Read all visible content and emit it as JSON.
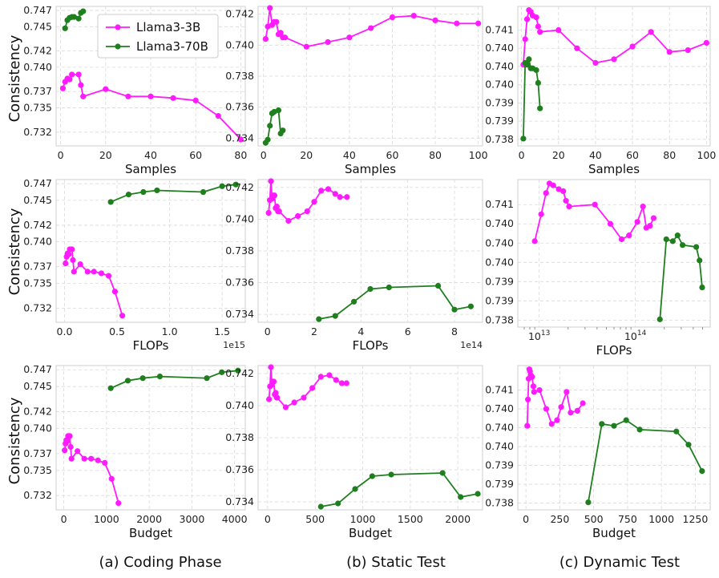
{
  "figure": {
    "ylabel": "Consistency",
    "captions": [
      "(a) Coding Phase",
      "(b) Static Test",
      "(c) Dynamic Test"
    ],
    "legend": [
      "Llama3-3B",
      "Llama3-70B"
    ]
  },
  "colors": {
    "series_3b": "#ff1aff",
    "series_70b": "#1f7f1f"
  },
  "chart_data": [
    {
      "id": "a-samples",
      "type": "line",
      "xlabel": "Samples",
      "xscale": "linear",
      "xlim": [
        -2,
        82
      ],
      "xticks": [
        0,
        20,
        40,
        60,
        80
      ],
      "xticklabels": [
        "0",
        "20",
        "40",
        "60",
        "80"
      ],
      "ylim": [
        0.7303,
        0.7475
      ],
      "yticks": [
        0.732,
        0.735,
        0.737,
        0.74,
        0.742,
        0.745,
        0.747
      ],
      "yticklabels": [
        "0.732",
        "0.735",
        "0.737",
        "0.740",
        "0.742",
        "0.745",
        "0.747"
      ],
      "legend": true,
      "series": [
        {
          "name": "Llama3-3B",
          "x": [
            1,
            2,
            3,
            4,
            5,
            8,
            9,
            10,
            20,
            30,
            40,
            50,
            60,
            70,
            80
          ],
          "y": [
            0.7374,
            0.7382,
            0.7386,
            0.7385,
            0.7391,
            0.7391,
            0.7378,
            0.7364,
            0.7373,
            0.7364,
            0.7364,
            0.7362,
            0.7359,
            0.734,
            0.7311
          ]
        },
        {
          "name": "Llama3-70B",
          "x": [
            2,
            3,
            4,
            5,
            6,
            8,
            9,
            10
          ],
          "y": [
            0.7448,
            0.7458,
            0.7461,
            0.7462,
            0.7462,
            0.746,
            0.7467,
            0.7469
          ]
        }
      ]
    },
    {
      "id": "b-samples",
      "type": "line",
      "xlabel": "Samples",
      "xscale": "linear",
      "xlim": [
        -2.5,
        102
      ],
      "xticks": [
        0,
        20,
        40,
        60,
        80,
        100
      ],
      "xticklabels": [
        "0",
        "20",
        "40",
        "60",
        "80",
        "100"
      ],
      "ylim": [
        0.7335,
        0.7425
      ],
      "yticks": [
        0.734,
        0.736,
        0.738,
        0.74,
        0.742
      ],
      "yticklabels": [
        "0.734",
        "0.736",
        "0.738",
        "0.740",
        "0.742"
      ],
      "legend": false,
      "series": [
        {
          "name": "Llama3-3B",
          "x": [
            1,
            2,
            3,
            4,
            5,
            6,
            7,
            8,
            9,
            10,
            20,
            30,
            40,
            50,
            60,
            70,
            80,
            90,
            100
          ],
          "y": [
            0.7404,
            0.7412,
            0.7424,
            0.7413,
            0.7415,
            0.7415,
            0.7407,
            0.7408,
            0.7405,
            0.7405,
            0.7399,
            0.7402,
            0.7405,
            0.7411,
            0.7418,
            0.7419,
            0.7416,
            0.7414,
            0.7414
          ]
        },
        {
          "name": "Llama3-70B",
          "x": [
            1,
            2,
            3,
            4,
            5,
            7,
            8,
            9
          ],
          "y": [
            0.7337,
            0.7339,
            0.7348,
            0.7356,
            0.7357,
            0.7358,
            0.7343,
            0.7345
          ]
        }
      ]
    },
    {
      "id": "c-samples",
      "type": "line",
      "xlabel": "Samples",
      "xscale": "linear",
      "xlim": [
        -2,
        102
      ],
      "xticks": [
        0,
        20,
        40,
        60,
        80,
        100
      ],
      "xticklabels": [
        "0",
        "20",
        "40",
        "60",
        "80",
        "100"
      ],
      "ylim": [
        0.73782,
        0.74165
      ],
      "yticks": [
        0.738,
        0.7385,
        0.739,
        0.7395,
        0.74,
        0.7405,
        0.741
      ],
      "yticklabels": [
        "0.738",
        "0.739",
        "0.739",
        "0.740",
        "0.740",
        "0.740",
        "0.741"
      ],
      "legend": false,
      "series": [
        {
          "name": "Llama3-3B",
          "x": [
            1,
            2,
            3,
            4,
            5,
            6,
            8,
            9,
            10,
            20,
            30,
            40,
            50,
            60,
            70,
            80,
            90,
            100
          ],
          "y": [
            0.74005,
            0.74075,
            0.7413,
            0.74155,
            0.7415,
            0.7414,
            0.74135,
            0.7411,
            0.74095,
            0.741,
            0.7405,
            0.7401,
            0.7402,
            0.74055,
            0.74095,
            0.7404,
            0.74045,
            0.74065
          ]
        },
        {
          "name": "Llama3-70B",
          "x": [
            1,
            2,
            3,
            4,
            5,
            6,
            8,
            9,
            10
          ],
          "y": [
            0.73802,
            0.7401,
            0.74005,
            0.7402,
            0.73995,
            0.73995,
            0.7399,
            0.73955,
            0.73885
          ]
        }
      ]
    },
    {
      "id": "a-flops",
      "type": "line",
      "xlabel": "FLOPs",
      "xscale": "linear",
      "xoffset": "1e15",
      "xlim": [
        -0.08,
        1.72
      ],
      "xticks": [
        0,
        0.5,
        1,
        1.5
      ],
      "xticklabels": [
        "0.0",
        "0.5",
        "1.0",
        "1.5"
      ],
      "ylim": [
        0.7303,
        0.7475
      ],
      "yticks": [
        0.732,
        0.735,
        0.737,
        0.74,
        0.742,
        0.745,
        0.747
      ],
      "yticklabels": [
        "0.732",
        "0.735",
        "0.737",
        "0.740",
        "0.742",
        "0.745",
        "0.747"
      ],
      "legend": false,
      "series": [
        {
          "name": "Llama3-3B",
          "x": [
            0.01,
            0.02,
            0.03,
            0.04,
            0.05,
            0.07,
            0.08,
            0.09,
            0.15,
            0.22,
            0.28,
            0.35,
            0.42,
            0.48,
            0.55
          ],
          "y": [
            0.7374,
            0.7382,
            0.7386,
            0.7385,
            0.7391,
            0.7391,
            0.7378,
            0.7364,
            0.7373,
            0.7364,
            0.7364,
            0.7362,
            0.7359,
            0.734,
            0.7311
          ]
        },
        {
          "name": "Llama3-70B",
          "x": [
            0.44,
            0.61,
            0.75,
            0.88,
            1.32,
            1.5,
            1.63
          ],
          "y": [
            0.7448,
            0.7457,
            0.746,
            0.7462,
            0.746,
            0.7467,
            0.7469
          ]
        }
      ]
    },
    {
      "id": "b-flops",
      "type": "line",
      "xlabel": "FLOPs",
      "xscale": "linear",
      "xoffset": "1e14",
      "xlim": [
        -0.4,
        9.2
      ],
      "xticks": [
        0,
        2,
        4,
        6,
        8
      ],
      "xticklabels": [
        "0",
        "2",
        "4",
        "6",
        "8"
      ],
      "ylim": [
        0.7335,
        0.7425
      ],
      "yticks": [
        0.734,
        0.736,
        0.738,
        0.74,
        0.742
      ],
      "yticklabels": [
        "0.734",
        "0.736",
        "0.738",
        "0.740",
        "0.742"
      ],
      "legend": false,
      "series": [
        {
          "name": "Llama3-3B",
          "x": [
            0.05,
            0.1,
            0.15,
            0.2,
            0.25,
            0.3,
            0.35,
            0.4,
            0.45,
            0.5,
            0.9,
            1.3,
            1.7,
            2.0,
            2.3,
            2.6,
            2.9,
            3.1,
            3.4
          ],
          "y": [
            0.7404,
            0.7412,
            0.7424,
            0.7413,
            0.7415,
            0.7415,
            0.7407,
            0.7408,
            0.7405,
            0.7405,
            0.7399,
            0.7402,
            0.7405,
            0.7411,
            0.7418,
            0.7419,
            0.7416,
            0.7414,
            0.7414
          ]
        },
        {
          "name": "Llama3-70B",
          "x": [
            2.2,
            2.9,
            3.7,
            4.4,
            5.2,
            7.3,
            8.0,
            8.7
          ],
          "y": [
            0.7337,
            0.7339,
            0.7348,
            0.7356,
            0.7357,
            0.7358,
            0.7343,
            0.7345
          ]
        }
      ]
    },
    {
      "id": "c-flops",
      "type": "line",
      "xlabel": "FLOPs",
      "xscale": "log",
      "xlim": [
        6000000000000.0,
        600000000000000.0
      ],
      "xticks": [
        10000000000000.0,
        100000000000000.0
      ],
      "xticklabels": [
        "10",
        "10"
      ],
      "xtickexp": [
        "13",
        "14"
      ],
      "ylim": [
        0.73782,
        0.74165
      ],
      "yticks": [
        0.738,
        0.7385,
        0.739,
        0.7395,
        0.74,
        0.7405,
        0.741
      ],
      "yticklabels": [
        "0.738",
        "0.739",
        "0.739",
        "0.740",
        "0.740",
        "0.740",
        "0.741"
      ],
      "legend": false,
      "series": [
        {
          "name": "Llama3-3B",
          "x": [
            9000000000000.0,
            10500000000000.0,
            11800000000000.0,
            12800000000000.0,
            14000000000000.0,
            16000000000000.0,
            17800000000000.0,
            19000000000000.0,
            20500000000000.0,
            38000000000000.0,
            55000000000000.0,
            72000000000000.0,
            86000000000000.0,
            105000000000000.0,
            120000000000000.0,
            130000000000000.0,
            142000000000000.0,
            155000000000000.0
          ],
          "y": [
            0.74005,
            0.74075,
            0.7413,
            0.74155,
            0.7415,
            0.7414,
            0.74135,
            0.7411,
            0.74095,
            0.741,
            0.7405,
            0.7401,
            0.7402,
            0.74055,
            0.74095,
            0.7404,
            0.74045,
            0.74065
          ]
        },
        {
          "name": "Llama3-70B",
          "x": [
            180000000000000.0,
            210000000000000.0,
            245000000000000.0,
            275000000000000.0,
            310000000000000.0,
            430000000000000.0,
            465000000000000.0,
            495000000000000.0
          ],
          "y": [
            0.73802,
            0.7401,
            0.74005,
            0.7402,
            0.73995,
            0.7399,
            0.73955,
            0.73885
          ]
        }
      ]
    },
    {
      "id": "a-budget",
      "type": "line",
      "xlabel": "Budget",
      "xscale": "linear",
      "xlim": [
        -180,
        4250
      ],
      "xticks": [
        0,
        1000,
        2000,
        3000,
        4000
      ],
      "xticklabels": [
        "0",
        "1000",
        "2000",
        "3000",
        "4000"
      ],
      "ylim": [
        0.7303,
        0.7475
      ],
      "yticks": [
        0.732,
        0.735,
        0.737,
        0.74,
        0.742,
        0.745,
        0.747
      ],
      "yticklabels": [
        "0.732",
        "0.735",
        "0.737",
        "0.740",
        "0.742",
        "0.745",
        "0.747"
      ],
      "legend": false,
      "series": [
        {
          "name": "Llama3-3B",
          "x": [
            20,
            40,
            60,
            80,
            100,
            140,
            160,
            180,
            320,
            480,
            640,
            800,
            960,
            1120,
            1280
          ],
          "y": [
            0.7374,
            0.7382,
            0.7386,
            0.7385,
            0.7391,
            0.7391,
            0.7378,
            0.7364,
            0.7373,
            0.7364,
            0.7364,
            0.7362,
            0.7359,
            0.734,
            0.7311
          ]
        },
        {
          "name": "Llama3-70B",
          "x": [
            1100,
            1500,
            1850,
            2250,
            3350,
            3700,
            4080
          ],
          "y": [
            0.7448,
            0.7457,
            0.746,
            0.7462,
            0.746,
            0.7467,
            0.7469
          ]
        }
      ]
    },
    {
      "id": "b-budget",
      "type": "line",
      "xlabel": "Budget",
      "xscale": "linear",
      "xlim": [
        -100,
        2260
      ],
      "xticks": [
        0,
        500,
        1000,
        1500,
        2000
      ],
      "xticklabels": [
        "0",
        "500",
        "1000",
        "1500",
        "2000"
      ],
      "ylim": [
        0.7335,
        0.7425
      ],
      "yticks": [
        0.734,
        0.736,
        0.738,
        0.74,
        0.742
      ],
      "yticklabels": [
        "0.734",
        "0.736",
        "0.738",
        "0.740",
        "0.742"
      ],
      "legend": false,
      "series": [
        {
          "name": "Llama3-3B",
          "x": [
            15,
            25,
            35,
            45,
            55,
            65,
            75,
            85,
            95,
            100,
            190,
            280,
            380,
            470,
            560,
            650,
            720,
            780,
            830
          ],
          "y": [
            0.7404,
            0.7412,
            0.7424,
            0.7413,
            0.7415,
            0.7415,
            0.7407,
            0.7408,
            0.7405,
            0.7405,
            0.7399,
            0.7402,
            0.7405,
            0.7411,
            0.7418,
            0.7419,
            0.7416,
            0.7414,
            0.7414
          ]
        },
        {
          "name": "Llama3-70B",
          "x": [
            560,
            740,
            920,
            1100,
            1300,
            1840,
            2030,
            2210
          ],
          "y": [
            0.7337,
            0.7339,
            0.7348,
            0.7356,
            0.7357,
            0.7358,
            0.7343,
            0.7345
          ]
        }
      ]
    },
    {
      "id": "c-budget",
      "type": "line",
      "xlabel": "Budget",
      "xscale": "linear",
      "xlim": [
        -60,
        1360
      ],
      "xticks": [
        0,
        250,
        500,
        750,
        1000,
        1250
      ],
      "xticklabels": [
        "0",
        "250",
        "500",
        "750",
        "1000",
        "1250"
      ],
      "ylim": [
        0.73782,
        0.74165
      ],
      "yticks": [
        0.738,
        0.7385,
        0.739,
        0.7395,
        0.74,
        0.7405,
        0.741
      ],
      "yticklabels": [
        "0.738",
        "0.739",
        "0.739",
        "0.740",
        "0.740",
        "0.740",
        "0.741"
      ],
      "legend": false,
      "series": [
        {
          "name": "Llama3-3B",
          "x": [
            10,
            15,
            20,
            25,
            30,
            35,
            45,
            55,
            60,
            100,
            150,
            190,
            230,
            260,
            300,
            330,
            380,
            420
          ],
          "y": [
            0.74005,
            0.74075,
            0.7413,
            0.74155,
            0.7415,
            0.7414,
            0.74135,
            0.7411,
            0.74095,
            0.741,
            0.7405,
            0.7401,
            0.7402,
            0.74055,
            0.74095,
            0.7404,
            0.74045,
            0.74065
          ]
        },
        {
          "name": "Llama3-70B",
          "x": [
            460,
            560,
            650,
            740,
            840,
            1110,
            1200,
            1300
          ],
          "y": [
            0.73802,
            0.7401,
            0.74005,
            0.7402,
            0.73995,
            0.7399,
            0.73955,
            0.73885
          ]
        }
      ]
    }
  ]
}
